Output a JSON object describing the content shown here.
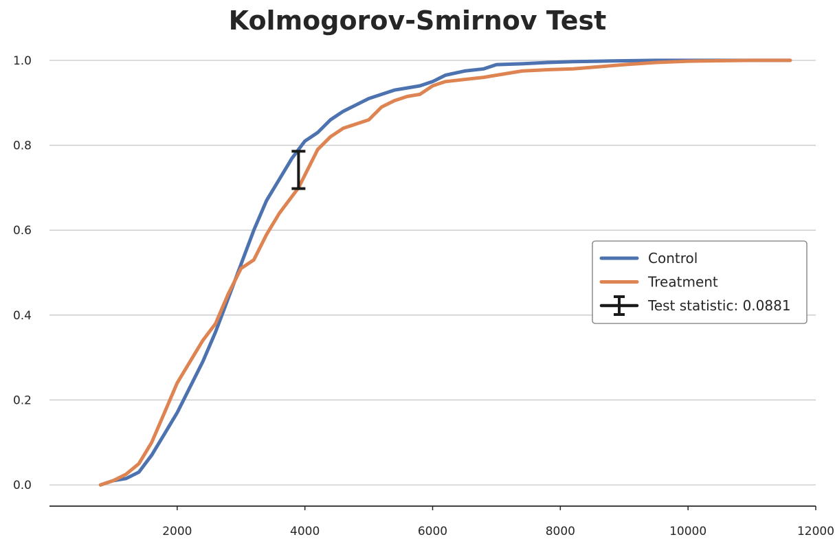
{
  "chart_data": {
    "type": "line",
    "title": "Kolmogorov-Smirnov Test",
    "xlabel": "",
    "ylabel": "",
    "xlim": [
      0,
      12000
    ],
    "ylim": [
      -0.05,
      1.05
    ],
    "x_ticks": [
      2000,
      4000,
      6000,
      8000,
      10000,
      12000
    ],
    "y_ticks": [
      0.0,
      0.2,
      0.4,
      0.6,
      0.8,
      1.0
    ],
    "grid": "horizontal",
    "legend_position": "center-right",
    "series": [
      {
        "name": "Control",
        "color": "#4c72b0",
        "x": [
          800,
          1000,
          1200,
          1400,
          1600,
          1800,
          2000,
          2200,
          2400,
          2600,
          2800,
          3000,
          3200,
          3400,
          3600,
          3800,
          3900,
          4000,
          4200,
          4400,
          4600,
          4800,
          5000,
          5200,
          5400,
          5600,
          5800,
          6000,
          6200,
          6500,
          6800,
          7000,
          7400,
          7800,
          8200,
          8600,
          9000,
          9500,
          10000,
          11000,
          11600
        ],
        "values": [
          0.0,
          0.01,
          0.015,
          0.03,
          0.07,
          0.12,
          0.17,
          0.23,
          0.29,
          0.36,
          0.44,
          0.52,
          0.6,
          0.67,
          0.72,
          0.77,
          0.79,
          0.81,
          0.83,
          0.86,
          0.88,
          0.895,
          0.91,
          0.92,
          0.93,
          0.935,
          0.94,
          0.95,
          0.965,
          0.975,
          0.98,
          0.99,
          0.992,
          0.995,
          0.997,
          0.998,
          0.999,
          1.0,
          1.0,
          1.0,
          1.0
        ]
      },
      {
        "name": "Treatment",
        "color": "#dd8452",
        "x": [
          800,
          1000,
          1200,
          1400,
          1600,
          1800,
          2000,
          2200,
          2400,
          2600,
          2800,
          3000,
          3200,
          3400,
          3600,
          3800,
          3900,
          4000,
          4200,
          4400,
          4600,
          4800,
          5000,
          5200,
          5400,
          5600,
          5800,
          6000,
          6200,
          6500,
          6800,
          7000,
          7400,
          7800,
          8200,
          8600,
          9000,
          9500,
          10000,
          11000,
          11600
        ],
        "values": [
          0.0,
          0.01,
          0.025,
          0.05,
          0.1,
          0.17,
          0.24,
          0.29,
          0.34,
          0.38,
          0.45,
          0.51,
          0.53,
          0.59,
          0.64,
          0.68,
          0.7,
          0.73,
          0.79,
          0.82,
          0.84,
          0.85,
          0.86,
          0.89,
          0.905,
          0.915,
          0.92,
          0.94,
          0.95,
          0.955,
          0.96,
          0.965,
          0.975,
          0.978,
          0.98,
          0.985,
          0.99,
          0.995,
          0.998,
          1.0,
          1.0
        ]
      }
    ],
    "annotation": {
      "name": "Test statistic: 0.0881",
      "x": 3900,
      "y_low": 0.698,
      "y_high": 0.786,
      "color": "#1a1a1a"
    }
  }
}
